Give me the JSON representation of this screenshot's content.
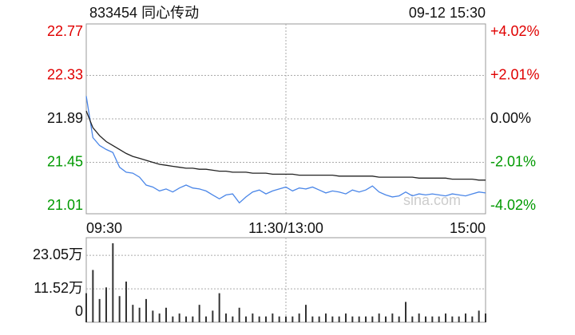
{
  "chart_data": [
    {
      "type": "line",
      "title": "833454 同心传动",
      "subtitle": "09-12 15:30",
      "watermark": "sina.com",
      "xlim": [
        0,
        60
      ],
      "xticks": [
        {
          "value": 0,
          "label": "09:30"
        },
        {
          "value": 30,
          "label": "11:30/13:00"
        },
        {
          "value": 60,
          "label": "15:00"
        }
      ],
      "ylim": [
        21.01,
        22.77
      ],
      "yticks": [
        21.01,
        21.45,
        21.89,
        22.33,
        22.77
      ],
      "y2lim": [
        -4.02,
        4.02
      ],
      "y2ticks": [
        {
          "value": -4.02,
          "label": "-4.02%"
        },
        {
          "value": -2.01,
          "label": "-2.01%"
        },
        {
          "value": 0,
          "label": "0.00%"
        },
        {
          "value": 2.01,
          "label": "+2.01%"
        },
        {
          "value": 4.02,
          "label": "+4.02%"
        }
      ],
      "up_color": "#e00000",
      "down_color": "#009900",
      "grid": true,
      "series": [
        {
          "color": "#4a86e8",
          "values": [
            22.12,
            21.7,
            21.62,
            21.58,
            21.55,
            21.4,
            21.35,
            21.34,
            21.3,
            21.22,
            21.2,
            21.16,
            21.18,
            21.15,
            21.19,
            21.22,
            21.19,
            21.18,
            21.16,
            21.12,
            21.08,
            21.12,
            21.13,
            21.04,
            21.1,
            21.15,
            21.17,
            21.13,
            21.16,
            21.18,
            21.2,
            21.16,
            21.19,
            21.18,
            21.2,
            21.17,
            21.14,
            21.16,
            21.15,
            21.13,
            21.17,
            21.15,
            21.17,
            21.21,
            21.15,
            21.12,
            21.1,
            21.11,
            21.15,
            21.11,
            21.13,
            21.12,
            21.13,
            21.12,
            21.11,
            21.13,
            21.12,
            21.11,
            21.13,
            21.15,
            21.14
          ]
        },
        {
          "color": "#222222",
          "values": [
            21.97,
            21.8,
            21.72,
            21.66,
            21.62,
            21.58,
            21.54,
            21.51,
            21.49,
            21.47,
            21.45,
            21.43,
            21.42,
            21.41,
            21.4,
            21.39,
            21.39,
            21.38,
            21.38,
            21.37,
            21.36,
            21.36,
            21.35,
            21.35,
            21.35,
            21.34,
            21.34,
            21.34,
            21.33,
            21.33,
            21.33,
            21.33,
            21.32,
            21.32,
            21.32,
            21.32,
            21.32,
            21.32,
            21.31,
            21.31,
            21.31,
            21.31,
            21.31,
            21.31,
            21.3,
            21.3,
            21.3,
            21.3,
            21.3,
            21.3,
            21.29,
            21.29,
            21.29,
            21.29,
            21.29,
            21.28,
            21.28,
            21.28,
            21.28,
            21.27,
            21.27
          ]
        }
      ]
    },
    {
      "type": "bar",
      "xlim": [
        0,
        60
      ],
      "ylim": [
        0,
        27.2
      ],
      "yticks": [
        0,
        {
          "value": 11.52,
          "label": "11.52万"
        },
        {
          "value": 23.05,
          "label": "23.05万"
        }
      ],
      "color": "#333333",
      "grid": true,
      "values": [
        10,
        18,
        8,
        12,
        27.2,
        9,
        14,
        6,
        5,
        8,
        4,
        3,
        5,
        2,
        3,
        2,
        2,
        6,
        2,
        4,
        10,
        3,
        2,
        5,
        2,
        3,
        2,
        2,
        3,
        2,
        2,
        2,
        3,
        6,
        2,
        2,
        3,
        2,
        2,
        3,
        2,
        2,
        2,
        2,
        3,
        2,
        3,
        2,
        7,
        2,
        3,
        2,
        2,
        2,
        3,
        2,
        2,
        3,
        2,
        4,
        3
      ]
    }
  ]
}
